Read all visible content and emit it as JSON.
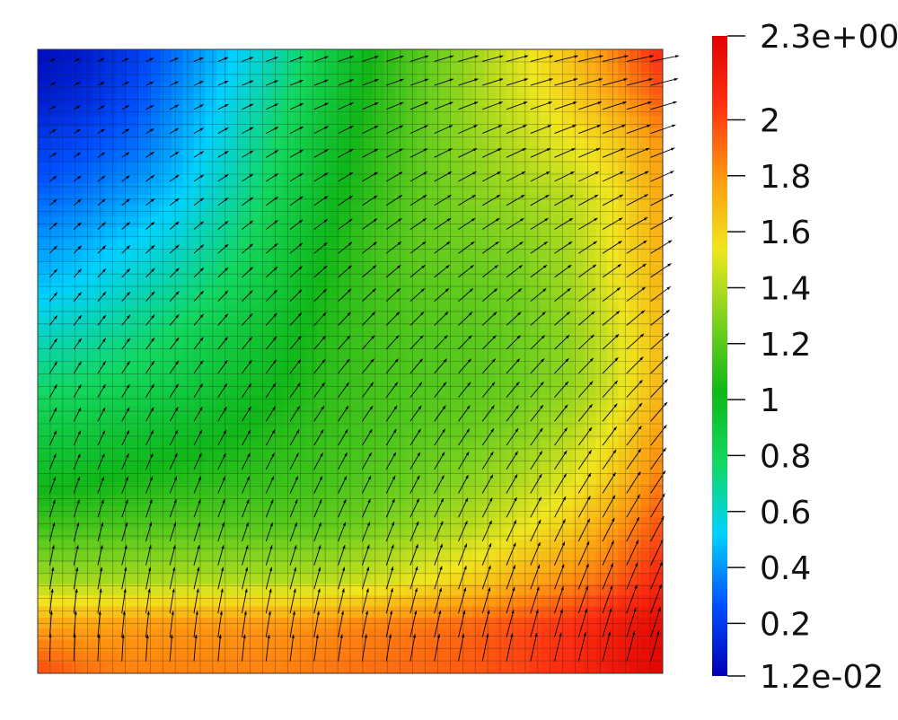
{
  "chart_data": {
    "type": "heatmap",
    "title": "",
    "xlabel": "",
    "ylabel": "",
    "colorbar": {
      "min": 0.012,
      "max": 2.3,
      "ticks": [
        {
          "value": 2.3,
          "label": "2.3e+00"
        },
        {
          "value": 2.0,
          "label": "2"
        },
        {
          "value": 1.8,
          "label": "1.8"
        },
        {
          "value": 1.6,
          "label": "1.6"
        },
        {
          "value": 1.4,
          "label": "1.4"
        },
        {
          "value": 1.2,
          "label": "1.2"
        },
        {
          "value": 1.0,
          "label": "1"
        },
        {
          "value": 0.8,
          "label": "0.8"
        },
        {
          "value": 0.6,
          "label": "0.6"
        },
        {
          "value": 0.4,
          "label": "0.4"
        },
        {
          "value": 0.2,
          "label": "0.2"
        },
        {
          "value": 0.012,
          "label": "1.2e-02"
        }
      ],
      "colormap": [
        "#0000b4",
        "#0050ff",
        "#00d2ff",
        "#12d860",
        "#10b818",
        "#7cd21e",
        "#f0e61e",
        "#ff9a10",
        "#ff3212",
        "#e00000"
      ]
    },
    "grid_resolution": [
      14,
      14
    ],
    "field_values": [
      [
        0.05,
        0.1,
        0.2,
        0.35,
        0.5,
        0.65,
        0.85,
        1.05,
        1.2,
        1.35,
        1.5,
        1.65,
        1.85,
        2.1
      ],
      [
        0.1,
        0.15,
        0.25,
        0.4,
        0.55,
        0.72,
        0.9,
        1.08,
        1.22,
        1.36,
        1.48,
        1.6,
        1.75,
        1.95
      ],
      [
        0.2,
        0.25,
        0.32,
        0.45,
        0.6,
        0.78,
        0.95,
        1.1,
        1.22,
        1.33,
        1.42,
        1.52,
        1.62,
        1.8
      ],
      [
        0.3,
        0.35,
        0.42,
        0.52,
        0.65,
        0.82,
        0.98,
        1.12,
        1.22,
        1.3,
        1.36,
        1.42,
        1.55,
        1.75
      ],
      [
        0.4,
        0.45,
        0.52,
        0.6,
        0.72,
        0.88,
        1.02,
        1.15,
        1.22,
        1.26,
        1.3,
        1.38,
        1.55,
        1.72
      ],
      [
        0.5,
        0.55,
        0.62,
        0.7,
        0.8,
        0.92,
        1.05,
        1.15,
        1.2,
        1.22,
        1.26,
        1.35,
        1.52,
        1.7
      ],
      [
        0.62,
        0.66,
        0.72,
        0.8,
        0.88,
        0.98,
        1.08,
        1.15,
        1.18,
        1.2,
        1.24,
        1.32,
        1.48,
        1.68
      ],
      [
        0.75,
        0.78,
        0.82,
        0.88,
        0.95,
        1.02,
        1.1,
        1.15,
        1.18,
        1.2,
        1.25,
        1.32,
        1.48,
        1.7
      ],
      [
        0.88,
        0.9,
        0.94,
        0.98,
        1.02,
        1.08,
        1.12,
        1.16,
        1.2,
        1.24,
        1.3,
        1.4,
        1.55,
        1.78
      ],
      [
        1.0,
        1.02,
        1.05,
        1.08,
        1.1,
        1.12,
        1.15,
        1.2,
        1.25,
        1.32,
        1.4,
        1.5,
        1.65,
        1.88
      ],
      [
        1.15,
        1.16,
        1.18,
        1.2,
        1.2,
        1.2,
        1.22,
        1.28,
        1.35,
        1.42,
        1.52,
        1.62,
        1.78,
        1.98
      ],
      [
        1.35,
        1.35,
        1.36,
        1.38,
        1.38,
        1.38,
        1.4,
        1.45,
        1.52,
        1.6,
        1.7,
        1.8,
        1.92,
        2.1
      ],
      [
        1.75,
        1.76,
        1.78,
        1.8,
        1.8,
        1.8,
        1.82,
        1.85,
        1.88,
        1.92,
        1.98,
        2.05,
        2.15,
        2.25
      ],
      [
        2.0,
        1.9,
        1.85,
        1.85,
        1.85,
        1.85,
        1.88,
        1.9,
        1.92,
        1.95,
        2.0,
        2.08,
        2.18,
        2.28
      ]
    ],
    "mesh": true,
    "vector_glyphs": true
  }
}
